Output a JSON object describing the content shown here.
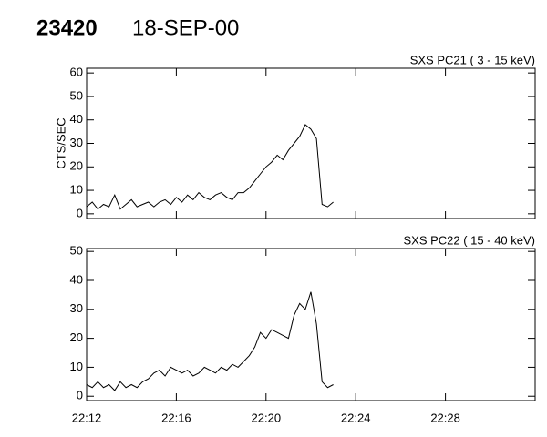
{
  "header": {
    "id": "23420",
    "date": "18-SEP-00"
  },
  "chart_data": [
    {
      "type": "line",
      "title": "SXS PC21  (  3 - 15 keV)",
      "ylabel": "CTS/SEC",
      "color": "#000000",
      "xlim": [
        "22:12",
        "22:32"
      ],
      "xticks": [
        "22:12",
        "22:16",
        "22:20",
        "22:24",
        "22:28"
      ],
      "ylim": [
        -2,
        62
      ],
      "yticks": [
        0,
        10,
        20,
        30,
        40,
        50,
        60
      ],
      "x": [
        "22:12:00",
        "22:12:15",
        "22:12:30",
        "22:12:45",
        "22:13:00",
        "22:13:15",
        "22:13:30",
        "22:13:45",
        "22:14:00",
        "22:14:15",
        "22:14:30",
        "22:14:45",
        "22:15:00",
        "22:15:15",
        "22:15:30",
        "22:15:45",
        "22:16:00",
        "22:16:15",
        "22:16:30",
        "22:16:45",
        "22:17:00",
        "22:17:15",
        "22:17:30",
        "22:17:45",
        "22:18:00",
        "22:18:15",
        "22:18:30",
        "22:18:45",
        "22:19:00",
        "22:19:15",
        "22:19:30",
        "22:19:45",
        "22:20:00",
        "22:20:15",
        "22:20:30",
        "22:20:45",
        "22:21:00",
        "22:21:15",
        "22:21:30",
        "22:21:45",
        "22:22:00",
        "22:22:15",
        "22:22:30",
        "22:22:45",
        "22:23:00"
      ],
      "values": [
        3,
        5,
        2,
        4,
        3,
        8,
        2,
        4,
        6,
        3,
        4,
        5,
        3,
        5,
        6,
        4,
        7,
        5,
        8,
        6,
        9,
        7,
        6,
        8,
        9,
        7,
        6,
        9,
        9,
        11,
        14,
        17,
        20,
        22,
        25,
        23,
        27,
        30,
        33,
        38,
        36,
        32,
        4,
        3,
        5
      ]
    },
    {
      "type": "line",
      "title": "SXS PC22  ( 15 - 40 keV)",
      "color": "#000000",
      "xlim": [
        "22:12",
        "22:32"
      ],
      "xticks": [
        "22:12",
        "22:16",
        "22:20",
        "22:24",
        "22:28"
      ],
      "ylim": [
        -1.5,
        51
      ],
      "yticks": [
        0,
        10,
        20,
        30,
        40,
        50
      ],
      "x": [
        "22:12:00",
        "22:12:15",
        "22:12:30",
        "22:12:45",
        "22:13:00",
        "22:13:15",
        "22:13:30",
        "22:13:45",
        "22:14:00",
        "22:14:15",
        "22:14:30",
        "22:14:45",
        "22:15:00",
        "22:15:15",
        "22:15:30",
        "22:15:45",
        "22:16:00",
        "22:16:15",
        "22:16:30",
        "22:16:45",
        "22:17:00",
        "22:17:15",
        "22:17:30",
        "22:17:45",
        "22:18:00",
        "22:18:15",
        "22:18:30",
        "22:18:45",
        "22:19:00",
        "22:19:15",
        "22:19:30",
        "22:19:45",
        "22:20:00",
        "22:20:15",
        "22:20:30",
        "22:20:45",
        "22:21:00",
        "22:21:15",
        "22:21:30",
        "22:21:45",
        "22:22:00",
        "22:22:15",
        "22:22:30",
        "22:22:45",
        "22:23:00"
      ],
      "values": [
        4,
        3,
        5,
        3,
        4,
        2,
        5,
        3,
        4,
        3,
        5,
        6,
        8,
        9,
        7,
        10,
        9,
        8,
        9,
        7,
        8,
        10,
        9,
        8,
        10,
        9,
        11,
        10,
        12,
        14,
        17,
        22,
        20,
        23,
        22,
        21,
        20,
        28,
        32,
        30,
        36,
        25,
        5,
        3,
        4
      ]
    }
  ]
}
